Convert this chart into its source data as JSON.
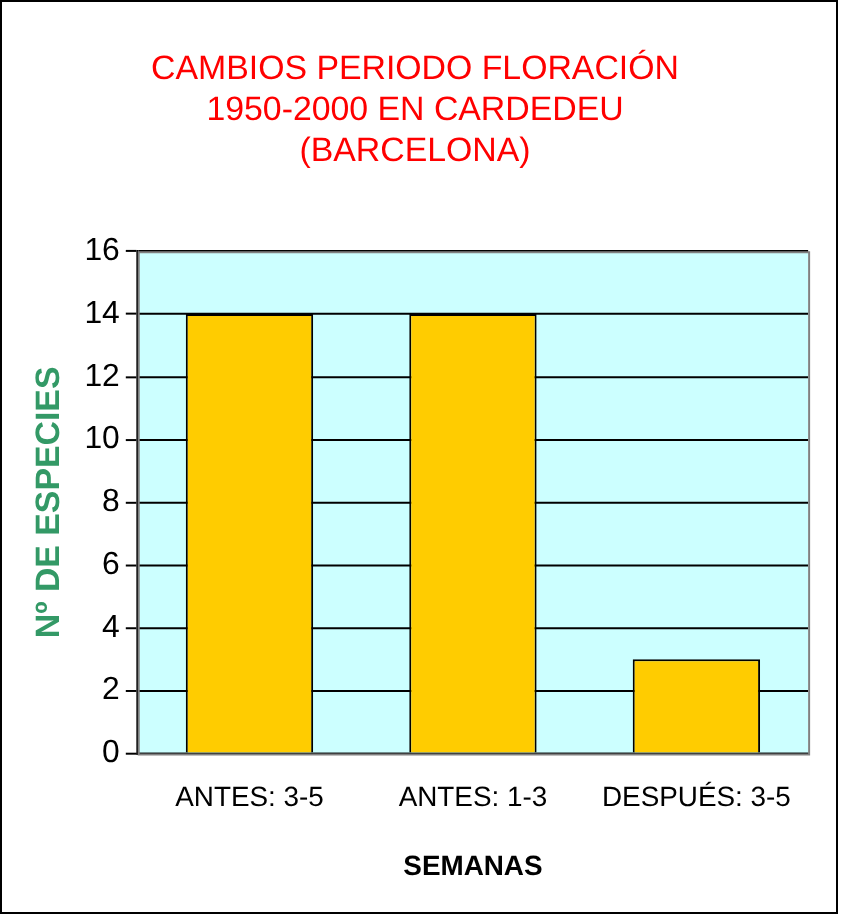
{
  "chart_data": {
    "type": "bar",
    "title": "CAMBIOS PERIODO FLORACIÓN\n1950-2000 EN CARDEDEU\n(BARCELONA)",
    "xlabel": "SEMANAS",
    "ylabel": "Nº DE ESPECIES",
    "categories": [
      "ANTES: 3-5",
      "ANTES: 1-3",
      "DESPUÉS: 3-5"
    ],
    "values": [
      14,
      14,
      3
    ],
    "color": "#ffcc00",
    "ylim": [
      0,
      16
    ],
    "yticks": [
      0,
      2,
      4,
      6,
      8,
      10,
      12,
      14,
      16
    ],
    "grid": "y",
    "legend": false
  }
}
